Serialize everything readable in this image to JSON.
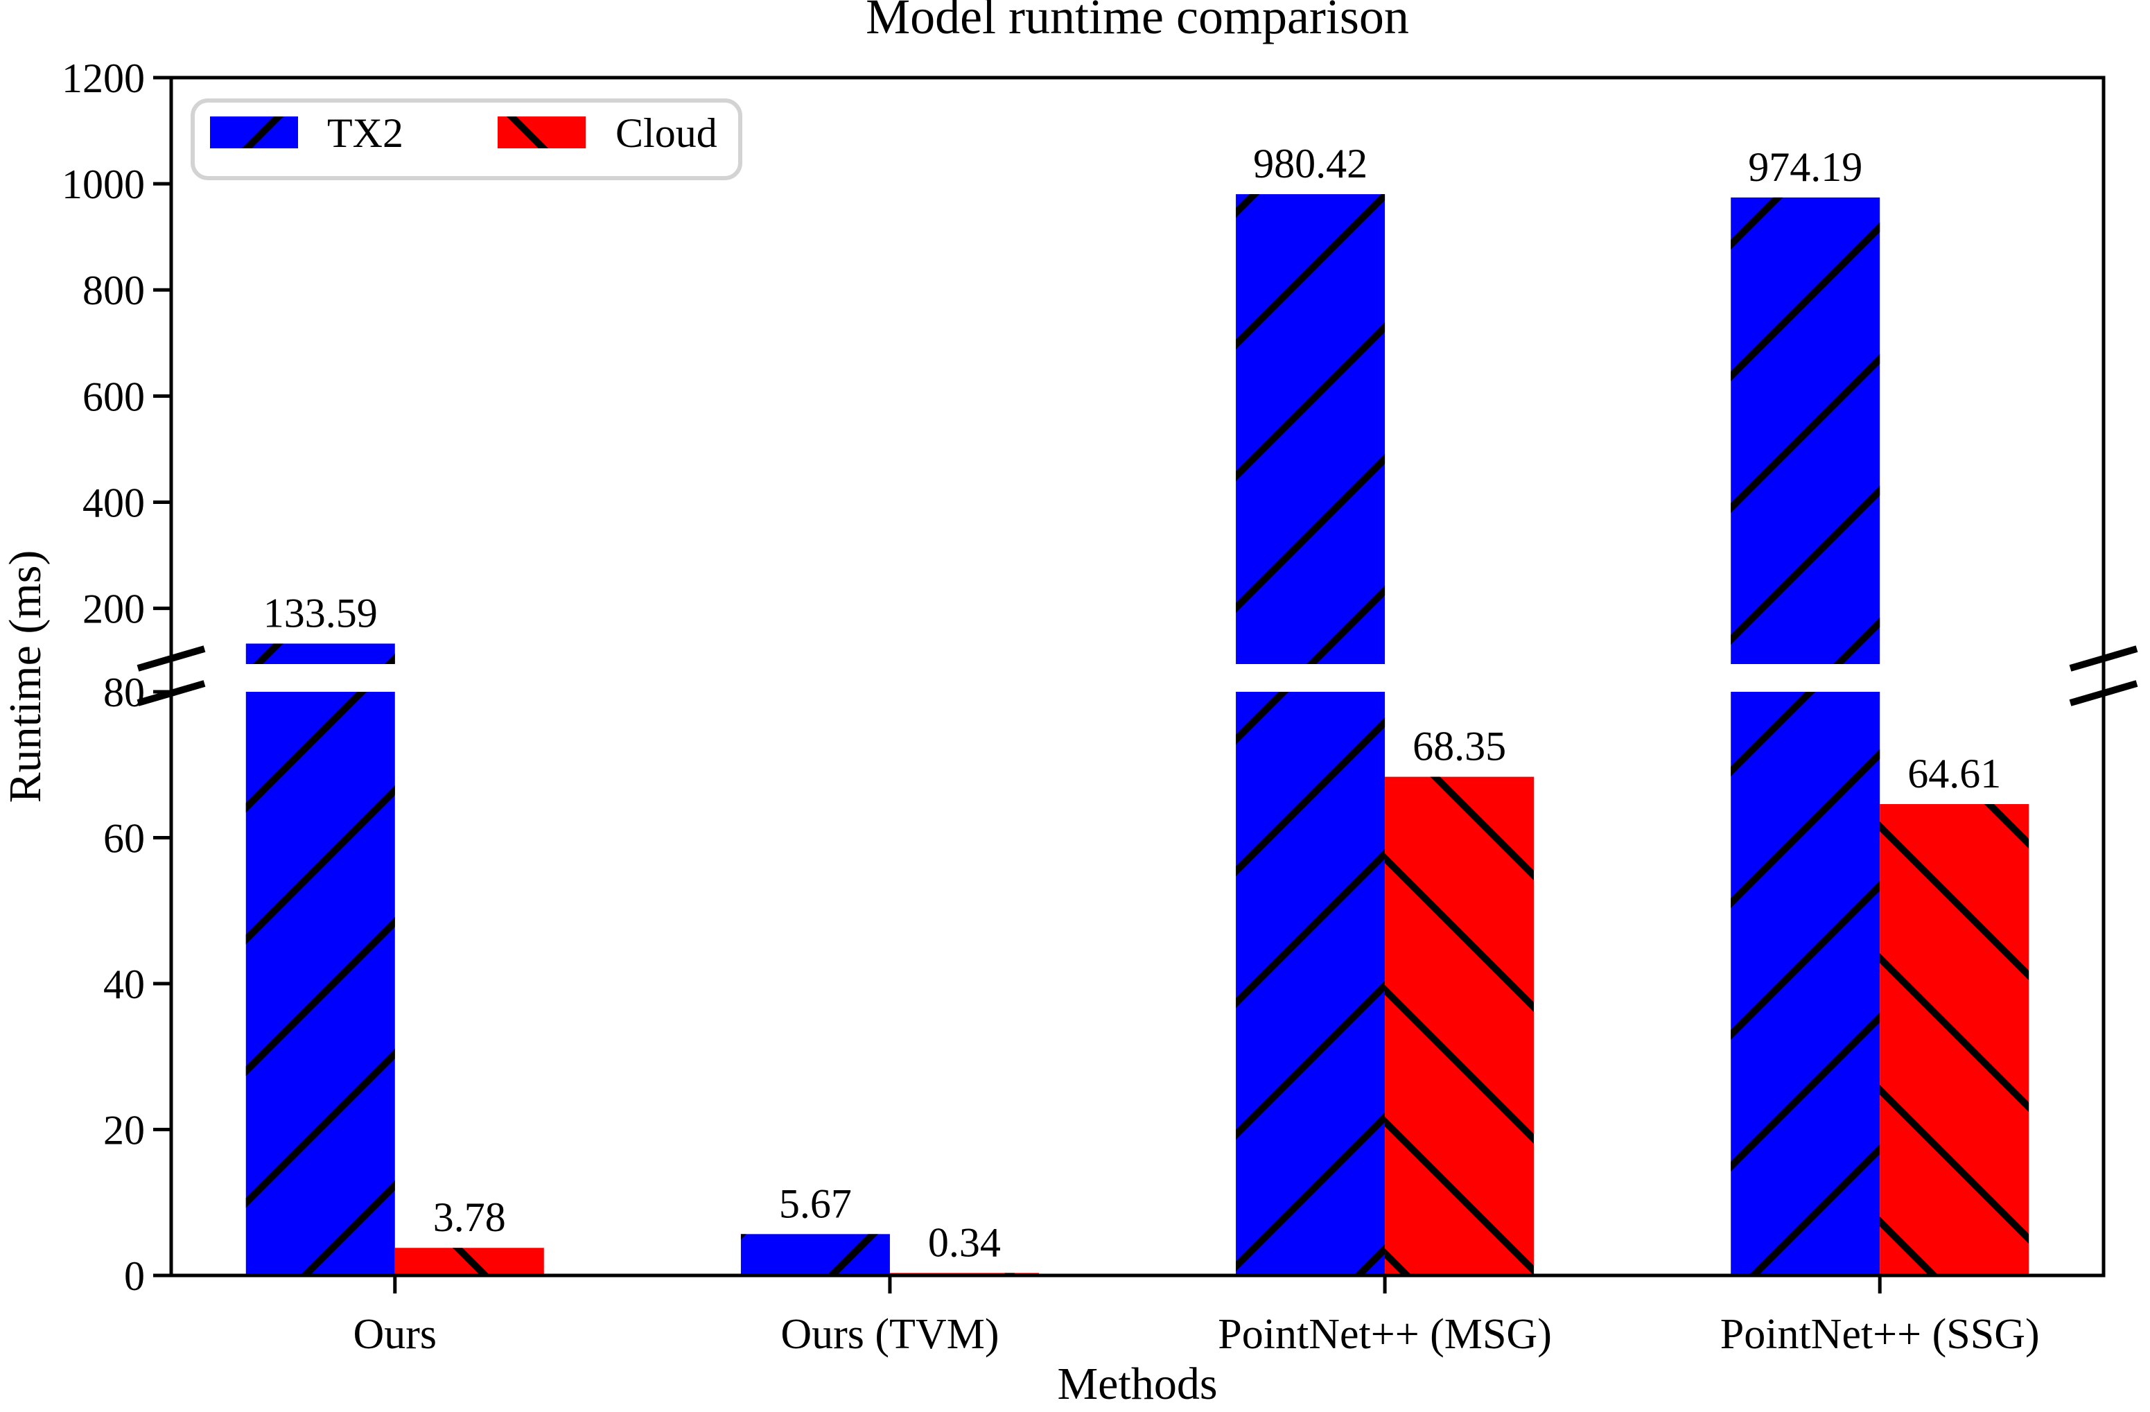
{
  "title": "Model runtime comparison",
  "xlabel": "Methods",
  "ylabel": "Runtime (ms)",
  "legend": {
    "position": "upper left",
    "items": [
      {
        "label": "TX2",
        "color": "#0000ff",
        "hatch": "/"
      },
      {
        "label": "Cloud",
        "color": "#ff0000",
        "hatch": "\\"
      }
    ]
  },
  "colors": {
    "tx2": "#0000ff",
    "cloud": "#ff0000",
    "axis": "#000000",
    "legend_border": "#d3d3d3",
    "background": "#ffffff"
  },
  "chart_data": {
    "type": "bar",
    "categories": [
      "Ours",
      "Ours (TVM)",
      "PointNet++ (MSG)",
      "PointNet++ (SSG)"
    ],
    "series": [
      {
        "name": "TX2",
        "color": "#0000ff",
        "hatch": "/",
        "values": [
          133.59,
          5.67,
          980.42,
          974.19
        ]
      },
      {
        "name": "Cloud",
        "color": "#ff0000",
        "hatch": "\\",
        "values": [
          3.78,
          0.34,
          68.35,
          64.61
        ]
      }
    ],
    "bar_value_labels": [
      "133.59",
      "3.78",
      "5.67",
      "0.34",
      "980.42",
      "68.35",
      "974.19",
      "64.61"
    ],
    "title": "Model runtime comparison",
    "xlabel": "Methods",
    "ylabel": "Runtime (ms)",
    "grid": false,
    "legend_position": "upper left",
    "broken_axis": {
      "enabled": true,
      "bottom_ylim": [
        0,
        80
      ],
      "top_ylim": [
        95,
        1200
      ],
      "bottom_yticks": [
        0,
        20,
        40,
        60,
        80
      ],
      "top_yticks": [
        200,
        400,
        600,
        800,
        1000,
        1200
      ]
    }
  }
}
